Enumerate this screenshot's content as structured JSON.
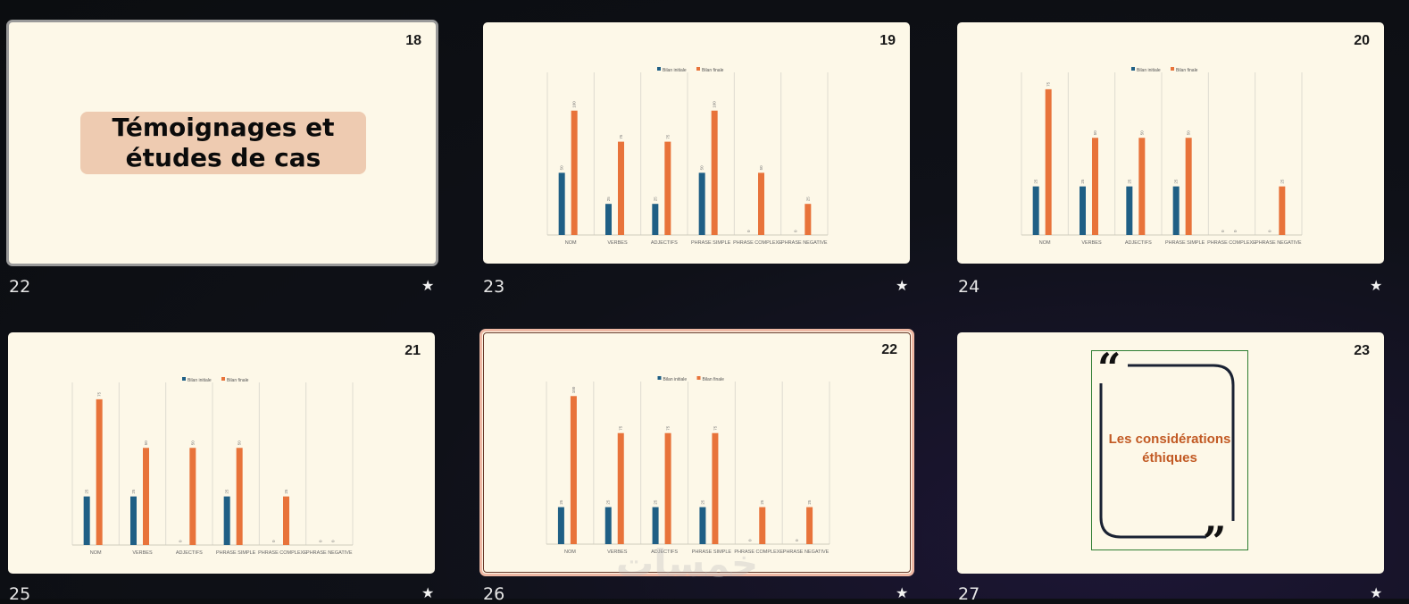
{
  "colors": {
    "initial": "#1f5f85",
    "final": "#e8733a",
    "bg": "#fdf8e8"
  },
  "legend": {
    "initial": "Bilan initiale",
    "final": "Bilan finale"
  },
  "slides": [
    {
      "index": "22",
      "number": "18",
      "type": "title",
      "title": "Témoignages et études de cas"
    },
    {
      "index": "23",
      "number": "19",
      "type": "chart",
      "chart_data": {
        "type": "bar",
        "categories": [
          "NOM",
          "VERBES",
          "ADJECTIFS",
          "PHRASE SIMPLE",
          "PHRASE COMPLEXE",
          "PHRASE NEGATIVE"
        ],
        "series": [
          {
            "name": "Bilan initiale",
            "values": [
              50,
              25,
              25,
              50,
              0,
              0
            ]
          },
          {
            "name": "Bilan finale",
            "values": [
              100,
              75,
              75,
              100,
              50,
              25
            ]
          }
        ],
        "ylim": [
          0,
          125
        ]
      }
    },
    {
      "index": "24",
      "number": "20",
      "type": "chart",
      "chart_data": {
        "type": "bar",
        "categories": [
          "NOM",
          "VERBES",
          "ADJECTIFS",
          "PHRASE SIMPLE",
          "PHRASE COMPLEXE",
          "PHRASE NEGATIVE"
        ],
        "series": [
          {
            "name": "Bilan initiale",
            "values": [
              25,
              25,
              25,
              25,
              0,
              0
            ]
          },
          {
            "name": "Bilan finale",
            "values": [
              75,
              50,
              50,
              50,
              0,
              25
            ]
          }
        ],
        "ylim": [
          0,
          80
        ]
      }
    },
    {
      "index": "25",
      "number": "21",
      "type": "chart",
      "chart_data": {
        "type": "bar",
        "categories": [
          "NOM",
          "VERBES",
          "ADJECTIFS",
          "PHRASE SIMPLE",
          "PHRASE COMPLEXE",
          "PHRASE NEGATIVE"
        ],
        "series": [
          {
            "name": "Bilan initiale",
            "values": [
              25,
              25,
              0,
              25,
              0,
              0
            ]
          },
          {
            "name": "Bilan finale",
            "values": [
              75,
              50,
              50,
              50,
              25,
              0
            ]
          }
        ],
        "ylim": [
          0,
          80
        ]
      }
    },
    {
      "index": "26",
      "number": "22",
      "type": "chart",
      "chart_data": {
        "type": "bar",
        "categories": [
          "NOM",
          "VERBES",
          "ADJECTIFS",
          "PHRASE SIMPLE",
          "PHRASE COMPLEXE",
          "PHRASE NEGATIVE"
        ],
        "series": [
          {
            "name": "Bilan initiale",
            "values": [
              25,
              25,
              25,
              25,
              0,
              0
            ]
          },
          {
            "name": "Bilan finale",
            "values": [
              100,
              75,
              75,
              75,
              25,
              25
            ]
          }
        ],
        "ylim": [
          0,
          105
        ]
      }
    },
    {
      "index": "27",
      "number": "23",
      "type": "quote",
      "title": "Les considérations éthiques"
    }
  ],
  "star_icon": "★",
  "watermark": "خمسات"
}
